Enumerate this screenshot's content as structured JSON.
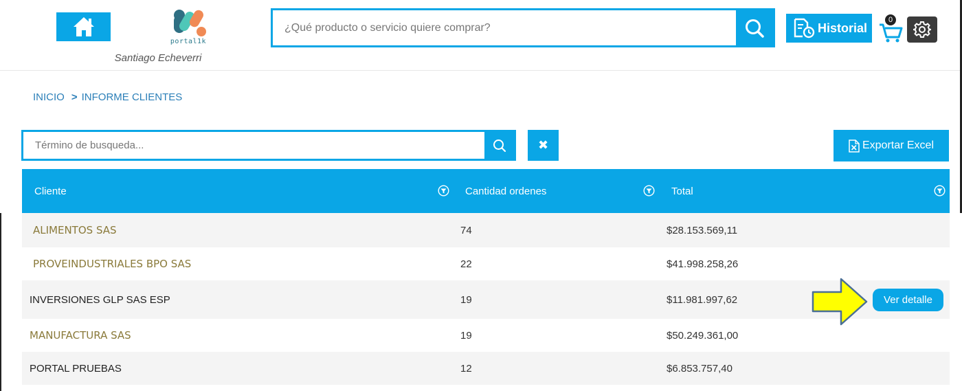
{
  "header": {
    "logo_text": "portal1k",
    "user_name": "Santiago Echeverri",
    "search_placeholder": "¿Qué producto o servicio quiere comprar?",
    "history_label": "Historial",
    "cart_count": "0",
    "icons": [
      "home-icon",
      "search-icon",
      "history-icon",
      "cart-icon",
      "gear-icon"
    ]
  },
  "breadcrumb": {
    "home": "INICIO",
    "separator": ">",
    "current": "INFORME CLIENTES"
  },
  "filter": {
    "placeholder": "Término de busqueda...",
    "clear_symbol": "✖",
    "export_label": "Exportar Excel"
  },
  "table": {
    "columns": [
      "Cliente",
      "Cantidad ordenes",
      "Total"
    ],
    "rows": [
      {
        "client": "ALIMENTOS SAS",
        "orders": "74",
        "total": "$28.153.569,11"
      },
      {
        "client": "PROVEINDUSTRIALES BPO SAS",
        "orders": "22",
        "total": "$41.998.258,26"
      },
      {
        "client": "INVERSIONES GLP SAS ESP",
        "orders": "19",
        "total": "$11.981.997,62"
      },
      {
        "client": "MANUFACTURA SAS",
        "orders": "19",
        "total": "$50.249.361,00"
      },
      {
        "client": "PORTAL PRUEBAS",
        "orders": "12",
        "total": "$6.853.757,40"
      }
    ],
    "detail_label": "Ver detalle"
  },
  "colors": {
    "accent": "#0aa6e6",
    "highlight_arrow": "#ffff00"
  }
}
